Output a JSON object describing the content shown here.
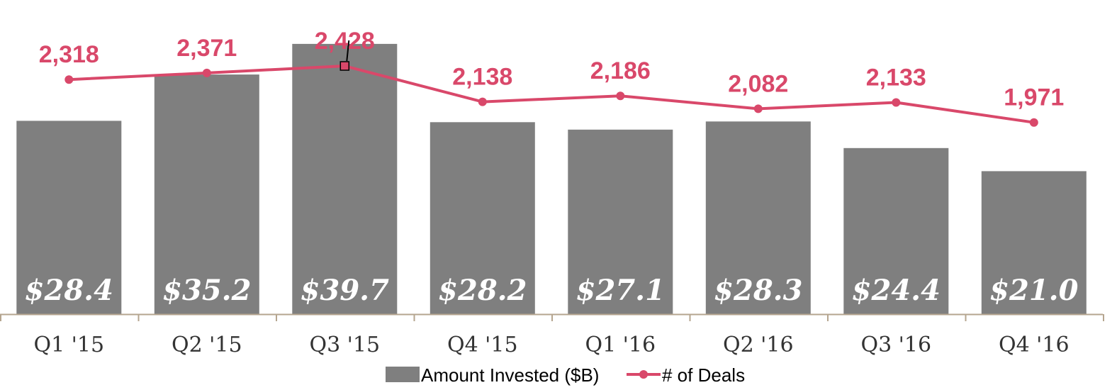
{
  "chart_data": {
    "type": "bar",
    "categories": [
      "Q1 '15",
      "Q2 '15",
      "Q3 '15",
      "Q4 '15",
      "Q1 '16",
      "Q2 '16",
      "Q3 '16",
      "Q4 '16"
    ],
    "series": [
      {
        "name": "Amount Invested ($B)",
        "type": "bar",
        "values": [
          28.4,
          35.2,
          39.7,
          28.2,
          27.1,
          28.3,
          24.4,
          21.0
        ],
        "labels": [
          "$28.4",
          "$35.2",
          "$39.7",
          "$28.2",
          "$27.1",
          "$28.3",
          "$24.4",
          "$21.0"
        ],
        "color": "#7f7f7f"
      },
      {
        "name": "# of Deals",
        "type": "line",
        "values": [
          2318,
          2371,
          2428,
          2138,
          2186,
          2082,
          2133,
          1971
        ],
        "labels": [
          "2,318",
          "2,371",
          "2,428",
          "2,138",
          "2,186",
          "2,082",
          "2,133",
          "1,971"
        ],
        "color": "#d9486a"
      }
    ],
    "title": "",
    "xlabel": "",
    "ylabel": "",
    "ylim": [
      0,
      40
    ],
    "legend_position": "bottom-center",
    "grid": false
  }
}
